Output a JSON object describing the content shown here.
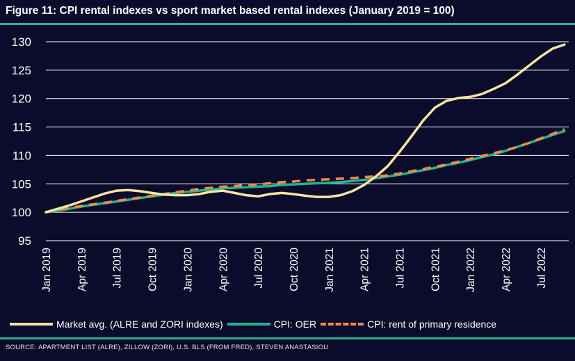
{
  "title": "Figure 11: CPI rental indexes vs sport market based rental indexes (January 2019 = 100)",
  "source": "SOURCE: APARTMENT LIST (ALRE), ZILLOW (ZORI), U.S. BLS (FROM FRED), STEVEN ANASTASIOU",
  "colors": {
    "background": "#0b0b2b",
    "accent_rule": "#1fb58f",
    "gridline": "#ffffff"
  },
  "chart_data": {
    "type": "line",
    "ylim": [
      95,
      130
    ],
    "yticks": [
      95,
      100,
      105,
      110,
      115,
      120,
      125,
      130
    ],
    "xlim": [
      "2019-01",
      "2022-09"
    ],
    "xticks": [
      "Jan 2019",
      "Apr 2019",
      "Jul 2019",
      "Oct 2019",
      "Jan 2020",
      "Apr 2020",
      "Jul 2020",
      "Oct 2020",
      "Jan 2021",
      "Apr 2021",
      "Jul 2021",
      "Oct 2021",
      "Jan 2022",
      "Apr 2022",
      "Jul 2022"
    ],
    "grid": "horizontal",
    "legend_position": "bottom",
    "x": [
      "2019-01",
      "2019-02",
      "2019-03",
      "2019-04",
      "2019-05",
      "2019-06",
      "2019-07",
      "2019-08",
      "2019-09",
      "2019-10",
      "2019-11",
      "2019-12",
      "2020-01",
      "2020-02",
      "2020-03",
      "2020-04",
      "2020-05",
      "2020-06",
      "2020-07",
      "2020-08",
      "2020-09",
      "2020-10",
      "2020-11",
      "2020-12",
      "2021-01",
      "2021-02",
      "2021-03",
      "2021-04",
      "2021-05",
      "2021-06",
      "2021-07",
      "2021-08",
      "2021-09",
      "2021-10",
      "2021-11",
      "2021-12",
      "2022-01",
      "2022-02",
      "2022-03",
      "2022-04",
      "2022-05",
      "2022-06",
      "2022-07",
      "2022-08",
      "2022-09"
    ],
    "series": [
      {
        "name": "Market avg. (ALRE and ZORI indexes)",
        "color": "#f7e4a2",
        "style": "solid",
        "values": [
          100.0,
          100.6,
          101.2,
          101.9,
          102.6,
          103.3,
          103.8,
          103.9,
          103.7,
          103.4,
          103.1,
          103.0,
          103.0,
          103.2,
          103.6,
          103.8,
          103.4,
          103.0,
          102.8,
          103.2,
          103.4,
          103.2,
          102.9,
          102.7,
          102.7,
          103.0,
          103.7,
          104.8,
          106.3,
          108.1,
          110.6,
          113.3,
          116.1,
          118.4,
          119.6,
          120.1,
          120.3,
          120.8,
          121.7,
          122.7,
          124.2,
          125.8,
          127.4,
          128.8,
          129.5
        ]
      },
      {
        "name": "CPI: OER",
        "color": "#1fb58f",
        "style": "solid",
        "values": [
          100.0,
          100.3,
          100.6,
          101.0,
          101.3,
          101.6,
          101.9,
          102.2,
          102.5,
          102.8,
          103.1,
          103.4,
          103.6,
          103.8,
          104.0,
          104.2,
          104.3,
          104.4,
          104.5,
          104.6,
          104.8,
          104.9,
          105.0,
          105.1,
          105.2,
          105.3,
          105.5,
          105.7,
          106.0,
          106.3,
          106.6,
          107.0,
          107.4,
          107.8,
          108.3,
          108.7,
          109.2,
          109.7,
          110.2,
          110.8,
          111.5,
          112.2,
          112.9,
          113.6,
          114.3
        ]
      },
      {
        "name": "CPI: rent of primary residence",
        "color": "#f28a46",
        "style": "dashed",
        "values": [
          100.0,
          100.4,
          100.8,
          101.1,
          101.4,
          101.7,
          102.0,
          102.3,
          102.6,
          102.9,
          103.2,
          103.5,
          103.8,
          104.1,
          104.3,
          104.5,
          104.6,
          104.8,
          104.9,
          105.1,
          105.3,
          105.4,
          105.6,
          105.7,
          105.8,
          105.9,
          106.0,
          106.2,
          106.3,
          106.5,
          106.8,
          107.2,
          107.6,
          108.0,
          108.4,
          108.9,
          109.4,
          109.9,
          110.4,
          110.9,
          111.5,
          112.2,
          113.0,
          113.8,
          114.6
        ]
      }
    ]
  }
}
